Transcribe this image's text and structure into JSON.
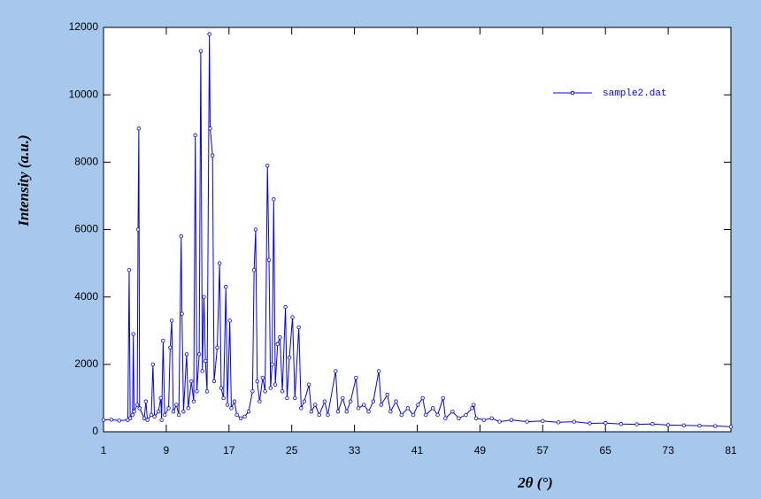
{
  "chart_data": {
    "type": "line",
    "xlabel": "2θ (°)",
    "ylabel": "Intensity (a.u.)",
    "xlim": [
      1,
      81
    ],
    "xticks": [
      1,
      9,
      17,
      25,
      33,
      41,
      49,
      57,
      65,
      73,
      81
    ],
    "ylim": [
      0,
      12000
    ],
    "yticks": [
      0,
      2000,
      4000,
      6000,
      8000,
      10000,
      12000
    ],
    "legend": "top-right",
    "series": [
      {
        "name": "sample2.dat",
        "color": "#0000ff",
        "x": [
          1,
          2,
          3,
          4.1,
          4.27,
          4.4,
          4.7,
          4.8,
          4.9,
          5.3,
          5.4,
          5.5,
          5.6,
          6.2,
          6.4,
          6.6,
          7.1,
          7.3,
          7.5,
          8.0,
          8.3,
          8.4,
          8.6,
          8.8,
          9.3,
          9.5,
          9.7,
          9.9,
          10.3,
          10.6,
          10.9,
          11.0,
          11.2,
          11.6,
          11.8,
          12.2,
          12.5,
          12.7,
          12.9,
          13.2,
          13.4,
          13.6,
          13.8,
          14.0,
          14.2,
          14.5,
          14.6,
          14.9,
          15.1,
          15.5,
          15.8,
          16.0,
          16.3,
          16.6,
          16.8,
          17.1,
          17.3,
          17.7,
          18.0,
          18.5,
          19.0,
          19.5,
          20.0,
          20.2,
          20.4,
          20.6,
          20.9,
          21.3,
          21.6,
          21.9,
          22.1,
          22.3,
          22.5,
          22.7,
          22.9,
          23.2,
          23.5,
          23.8,
          24.2,
          24.4,
          24.7,
          25.1,
          25.4,
          25.9,
          26.2,
          26.6,
          27.2,
          27.5,
          28.0,
          28.5,
          29.2,
          29.6,
          30.6,
          30.9,
          31.5,
          32.0,
          32.5,
          33.2,
          33.5,
          34.2,
          34.8,
          35.4,
          36.1,
          36.4,
          37.2,
          37.6,
          38.3,
          39.0,
          39.8,
          40.5,
          41.1,
          41.7,
          42.1,
          43.0,
          43.6,
          44.3,
          44.6,
          45.5,
          46.3,
          47.2,
          48.0,
          48.2,
          48.5,
          49.5,
          50.5,
          51.5,
          53,
          55,
          57,
          59,
          61,
          63,
          65,
          67,
          69,
          71,
          73,
          75,
          77,
          79,
          81
        ],
        "values": [
          350,
          360,
          330,
          350,
          4800,
          400,
          500,
          2900,
          600,
          800,
          6000,
          9000,
          700,
          400,
          900,
          350,
          500,
          2000,
          450,
          600,
          1000,
          350,
          2700,
          500,
          700,
          2500,
          3300,
          600,
          800,
          500,
          5800,
          3500,
          600,
          2300,
          700,
          1500,
          900,
          8800,
          1200,
          2300,
          11300,
          1800,
          4000,
          2100,
          1200,
          11800,
          9000,
          8200,
          1500,
          2500,
          5000,
          1300,
          1000,
          4300,
          800,
          3300,
          700,
          900,
          500,
          400,
          450,
          600,
          1200,
          4800,
          6000,
          1500,
          900,
          1600,
          1200,
          7900,
          5100,
          1300,
          2000,
          6900,
          1400,
          2600,
          2800,
          1200,
          3700,
          1000,
          2200,
          3400,
          1000,
          3100,
          700,
          900,
          1400,
          600,
          800,
          500,
          900,
          500,
          1800,
          600,
          1000,
          600,
          900,
          1600,
          700,
          800,
          600,
          900,
          1800,
          800,
          1100,
          600,
          900,
          500,
          700,
          500,
          800,
          1000,
          500,
          700,
          500,
          1000,
          400,
          600,
          400,
          500,
          700,
          800,
          400,
          350,
          400,
          300,
          350,
          300,
          320,
          280,
          300,
          250,
          260,
          230,
          220,
          230,
          200,
          190,
          180,
          170,
          150
        ]
      }
    ]
  }
}
